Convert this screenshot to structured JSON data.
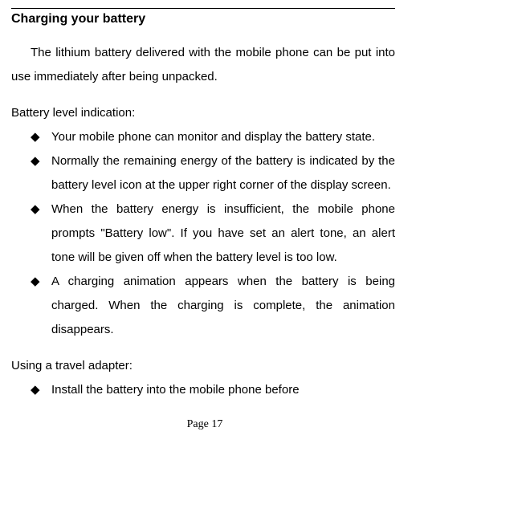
{
  "heading": "Charging your battery",
  "intro": "The lithium battery delivered with the mobile phone can be put into use immediately after being unpacked.",
  "subhead1": "Battery level indication:",
  "bullets1": [
    "Your mobile phone can monitor and display the battery state.",
    "Normally the remaining energy of the battery is indicated by the battery level icon at the upper right corner of the display screen.",
    "When the battery energy is insufficient, the mobile phone prompts \"Battery low\". If you have set an alert tone, an alert tone will be given off when the battery level is too low.",
    "A charging animation appears when the battery is being charged. When the charging is complete, the animation disappears."
  ],
  "subhead2": "Using a travel adapter:",
  "bullets2": [
    "Install the battery into the mobile phone before"
  ],
  "pageNumber": "Page 17",
  "bulletGlyph": "◆"
}
